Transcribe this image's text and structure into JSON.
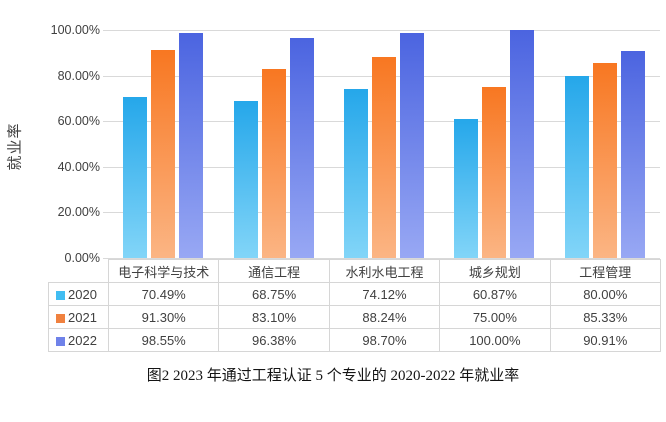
{
  "chart_data": {
    "type": "bar",
    "title": "",
    "ylabel": "就业率",
    "xlabel": "",
    "categories": [
      "电子科学与技术",
      "通信工程",
      "水利水电工程",
      "城乡规划",
      "工程管理"
    ],
    "series": [
      {
        "name": "2020",
        "values": [
          70.49,
          68.75,
          74.12,
          60.87,
          80.0
        ],
        "display": [
          "70.49%",
          "68.75%",
          "74.12%",
          "60.87%",
          "80.00%"
        ],
        "color_top": "#25a7ea",
        "color_bottom": "#82d5f8",
        "swatch_color": "#41bdf2"
      },
      {
        "name": "2021",
        "values": [
          91.3,
          83.1,
          88.24,
          75.0,
          85.33
        ],
        "display": [
          "91.30%",
          "83.10%",
          "88.24%",
          "75.00%",
          "85.33%"
        ],
        "color_top": "#f87721",
        "color_bottom": "#fbb584",
        "swatch_color": "#f0813f"
      },
      {
        "name": "2022",
        "values": [
          98.55,
          96.38,
          98.7,
          100.0,
          90.91
        ],
        "display": [
          "98.55%",
          "96.38%",
          "98.70%",
          "100.00%",
          "90.91%"
        ],
        "color_top": "#4b64e0",
        "color_bottom": "#98a8f4",
        "swatch_color": "#6f82e9"
      }
    ],
    "yticks": [
      "100.00%",
      "80.00%",
      "60.00%",
      "40.00%",
      "20.00%",
      "0.00%"
    ],
    "ylim": [
      0,
      100
    ],
    "grid": "horizontal",
    "gridline_color": "#d9d9d9",
    "legend_position": "table-left"
  },
  "caption": "图2  2023 年通过工程认证 5 个专业的 2020-2022 年就业率"
}
